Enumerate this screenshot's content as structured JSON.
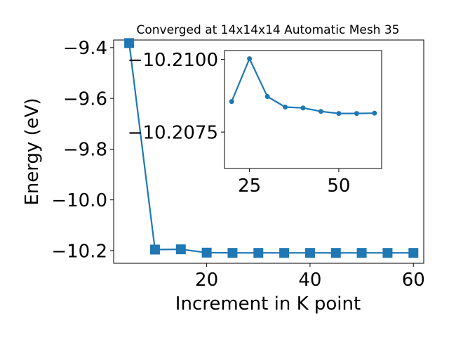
{
  "chart_data": [
    {
      "type": "line",
      "title": "Converged at 14x14x14 Automatic Mesh 35",
      "xlabel": "Increment in K point",
      "ylabel": "Energy (eV)",
      "xlim": [
        2,
        62
      ],
      "ylim": [
        -10.25,
        -9.37
      ],
      "xticks": [
        20,
        40,
        60
      ],
      "xtick_labels": [
        "20",
        "40",
        "60"
      ],
      "yticks": [
        -9.4,
        -9.6,
        -9.8,
        -10.0,
        -10.2
      ],
      "ytick_labels": [
        "−9.4",
        "−9.6",
        "−9.8",
        "−10.0",
        "−10.2"
      ],
      "marker": "square",
      "color": "#1f77b4",
      "grid": false,
      "series": [
        {
          "x": [
            5,
            10,
            15,
            20,
            25,
            30,
            35,
            40,
            45,
            50,
            55,
            60
          ],
          "y": [
            -9.382,
            -10.196,
            -10.195,
            -10.208,
            -10.209,
            -10.209,
            -10.209,
            -10.209,
            -10.209,
            -10.209,
            -10.209,
            -10.209
          ]
        }
      ]
    },
    {
      "type": "line",
      "inset": true,
      "xlim": [
        18,
        62
      ],
      "ylim": [
        -10.20625,
        -10.2103
      ],
      "xticks": [
        25,
        50
      ],
      "xtick_labels": [
        "25",
        "50"
      ],
      "yticks": [
        -10.21,
        -10.2075
      ],
      "ytick_labels": [
        "−10.2100",
        "−10.2075"
      ],
      "marker": "circle",
      "color": "#1f77b4",
      "grid": false,
      "series": [
        {
          "x": [
            20,
            25,
            30,
            35,
            40,
            45,
            50,
            55,
            60
          ],
          "y": [
            -10.20855,
            -10.21002,
            -10.20872,
            -10.20836,
            -10.20833,
            -10.20821,
            -10.20814,
            -10.20814,
            -10.20815
          ]
        }
      ]
    }
  ]
}
